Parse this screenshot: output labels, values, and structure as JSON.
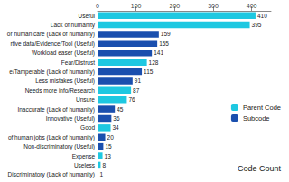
{
  "chart_data": {
    "type": "bar",
    "orientation": "horizontal",
    "xlabel": "Code Count",
    "categories": [
      "Useful",
      "Lack of humanity",
      "or human care (Lack of humanity)",
      "rtive data/Evidence/Tool (Useful)",
      "Workload easer (Useful)",
      "Fear/Distrust",
      "e/Tamperable (Lack of humanity)",
      "Less mistakes (Useful)",
      "Needs more info/Research",
      "Unsure",
      "Inaccurate (Lack of humanity)",
      "Innovative (Useful)",
      "Good",
      "of human jobs (Lack of humanity)",
      "Non-discriminatory (Useful)",
      "Expense",
      "Useless",
      "Discriminatory (Lack of humanity)"
    ],
    "series": [
      {
        "name": "Parent Code",
        "color": "#1ec8e1",
        "values": [
          410,
          395,
          null,
          null,
          null,
          128,
          null,
          null,
          87,
          76,
          null,
          null,
          34,
          null,
          null,
          13,
          8,
          null
        ]
      },
      {
        "name": "Subcode",
        "color": "#1a4fae",
        "values": [
          null,
          null,
          159,
          155,
          141,
          null,
          115,
          91,
          null,
          null,
          45,
          36,
          null,
          20,
          15,
          null,
          null,
          1
        ]
      }
    ],
    "xlim": [
      0,
      450
    ],
    "xticks": [
      0,
      100,
      200,
      300,
      400
    ],
    "grid": false,
    "legend": "right",
    "data_labels": true
  }
}
